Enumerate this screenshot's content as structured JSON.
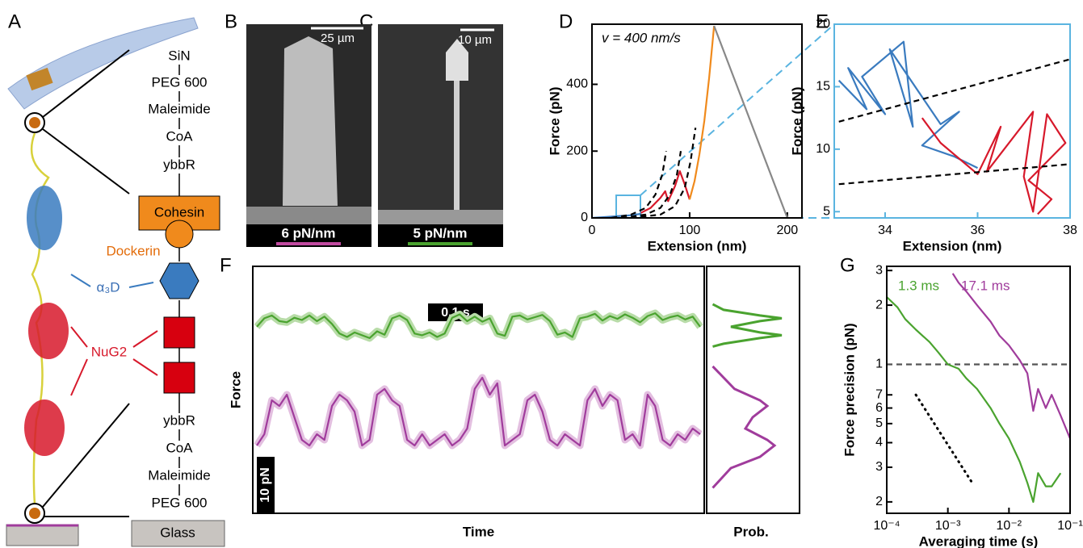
{
  "panel_labels": [
    "A",
    "B",
    "C",
    "D",
    "E",
    "F",
    "G"
  ],
  "diagram": {
    "top_chain": [
      "SiN",
      "PEG 600",
      "Maleimide",
      "CoA",
      "ybbR"
    ],
    "cohesin": "Cohesin",
    "dockerin": "Dockerin",
    "a3d": "α₃D",
    "nug2": "NuG2",
    "bottom_chain": [
      "ybbR",
      "CoA",
      "Maleimide",
      "PEG 600"
    ],
    "glass": "Glass"
  },
  "images": [
    {
      "scale": "25 µm",
      "stiffness": "6 pN/nm",
      "bar_color": "#c04aa0"
    },
    {
      "scale": "10 µm",
      "stiffness": "5 pN/nm",
      "bar_color": "#4aa32f"
    }
  ],
  "chart_data": [
    {
      "type": "line",
      "xlabel": "Extension (nm)",
      "ylabel": "Force (pN)",
      "annotation": "v = 400 nm/s",
      "xlim": [
        0,
        215
      ],
      "ylim": [
        0,
        580
      ],
      "xticks": [
        0,
        100,
        200
      ],
      "yticks": [
        0,
        200,
        400
      ],
      "series": [
        {
          "color": "#3a7bbf",
          "x": [
            0,
            10,
            20,
            30,
            40,
            50
          ],
          "values": [
            0,
            2,
            4,
            6,
            8,
            12
          ]
        },
        {
          "color": "#d7192b",
          "x": [
            50,
            60,
            70,
            75,
            78,
            85,
            90,
            95,
            100
          ],
          "values": [
            15,
            30,
            60,
            80,
            50,
            95,
            140,
            100,
            55
          ]
        },
        {
          "color": "#f08a1c",
          "x": [
            100,
            105,
            110,
            115,
            120,
            125
          ],
          "values": [
            55,
            110,
            190,
            290,
            420,
            575
          ]
        },
        {
          "color": "#888888",
          "x": [
            125,
            200
          ],
          "values": [
            575,
            0
          ]
        },
        {
          "color": "#000000",
          "dashed": true,
          "x": [
            20,
            40,
            55,
            65,
            72,
            76
          ],
          "values": [
            0,
            10,
            30,
            70,
            130,
            200
          ]
        },
        {
          "color": "#000000",
          "dashed": true,
          "x": [
            30,
            55,
            70,
            80,
            87,
            91
          ],
          "values": [
            0,
            10,
            30,
            70,
            130,
            200
          ]
        },
        {
          "color": "#000000",
          "dashed": true,
          "x": [
            40,
            70,
            85,
            95,
            101,
            106
          ],
          "values": [
            0,
            10,
            35,
            90,
            170,
            270
          ]
        }
      ]
    },
    {
      "type": "line",
      "xlabel": "Extension (nm)",
      "ylabel": "Force (pN)",
      "frame_color": "#5ab4e0",
      "xlim": [
        32.9,
        38
      ],
      "ylim": [
        4.5,
        20
      ],
      "xticks": [
        34,
        36,
        38
      ],
      "yticks": [
        5,
        10,
        15,
        20
      ],
      "series": [
        {
          "color": "#3a7bbf",
          "x": [
            33,
            33.6,
            33.2,
            34,
            33.5,
            34.4,
            34.6,
            34.1,
            35.2,
            35.6,
            34.8,
            35.5,
            36
          ],
          "values": [
            15.5,
            13.2,
            16.5,
            12.8,
            15.8,
            18.6,
            11.8,
            18,
            12,
            13,
            10.3,
            9.4,
            8.5
          ]
        },
        {
          "color": "#d7192b",
          "x": [
            34.8,
            35.2,
            36,
            36.5,
            36.2,
            37.2,
            37,
            37.2,
            37.5,
            37.9,
            37.1,
            37.6,
            37.3
          ],
          "values": [
            12.5,
            10.5,
            8,
            11.8,
            8.2,
            13,
            7.8,
            5,
            12.8,
            10.5,
            7.5,
            6,
            4.8
          ]
        },
        {
          "color": "#000000",
          "dashed": true,
          "x": [
            33,
            38
          ],
          "values": [
            12.2,
            17.2
          ]
        },
        {
          "color": "#000000",
          "dashed": true,
          "x": [
            33,
            38
          ],
          "values": [
            7.2,
            8.8
          ]
        }
      ]
    },
    {
      "type": "trace",
      "xlabel": "Time",
      "ylabel": "Force",
      "prob_label": "Prob.",
      "time_bar": "0.1 s",
      "force_bar": "10 pN",
      "ylim": [
        0,
        43.7
      ],
      "series": [
        {
          "color": "#4aa32f",
          "shade_color": "#b8dca8",
          "values": [
            33,
            34.5,
            35,
            34,
            33.8,
            34.6,
            34.2,
            35,
            34,
            34.8,
            33.5,
            31.8,
            31.2,
            32,
            31.5,
            31,
            32.2,
            31.6,
            34.5,
            35,
            34.2,
            31.8,
            31.5,
            32,
            31.2,
            31.8,
            34.6,
            35.2,
            34,
            34.8,
            33.9,
            34.5,
            31.8,
            31.4,
            34.8,
            35,
            34.3,
            34.7,
            35.1,
            34,
            31.6,
            32,
            31.2,
            34.5,
            34.8,
            35.3,
            34.1,
            34.9,
            34.4,
            35.2,
            34.6,
            33.8,
            34.9,
            35.4,
            34.2,
            34.7,
            35,
            34.3,
            34.8,
            33
          ]
        },
        {
          "color": "#a03c9c",
          "shade_color": "#e3bfe0",
          "values": [
            12,
            14,
            20,
            19,
            21,
            17,
            13,
            12,
            14,
            13,
            19,
            21,
            20,
            18,
            12,
            13,
            21,
            22,
            20,
            19,
            13,
            12,
            14,
            12,
            13,
            14,
            12,
            13,
            15,
            22,
            24,
            21,
            23,
            12,
            13,
            14,
            20,
            21,
            18,
            13,
            12,
            14,
            13,
            12,
            20,
            22,
            19,
            21,
            20,
            13,
            14,
            12,
            21,
            19,
            13,
            12,
            14,
            13,
            15,
            14
          ]
        }
      ],
      "distributions": [
        {
          "color": "#4aa32f",
          "force": [
            29.5,
            30,
            31,
            31.5,
            32,
            33,
            34,
            34.5,
            35,
            36,
            37
          ],
          "prob": [
            0.05,
            0.2,
            0.7,
            1,
            0.7,
            0.3,
            0.7,
            1,
            0.7,
            0.2,
            0.05
          ]
        },
        {
          "color": "#a03c9c",
          "force": [
            4.5,
            8,
            10,
            12,
            13,
            15,
            17,
            19,
            20,
            22,
            26
          ],
          "prob": [
            0.05,
            0.3,
            0.7,
            0.9,
            0.8,
            0.5,
            0.6,
            0.8,
            0.7,
            0.35,
            0.05
          ]
        }
      ]
    },
    {
      "type": "line",
      "xlabel": "Averaging time (s)",
      "ylabel": "Force precision (pN)",
      "xlog": true,
      "ylog": true,
      "xlim": [
        0.0001,
        0.1
      ],
      "ylim": [
        0.175,
        3.15
      ],
      "xticks": [
        {
          "value": 0.0001,
          "label": "10⁻⁴"
        },
        {
          "value": 0.001,
          "label": "10⁻³"
        },
        {
          "value": 0.01,
          "label": "10⁻²"
        },
        {
          "value": 0.1,
          "label": "10⁻¹"
        }
      ],
      "yticks": [
        {
          "value": 0.2,
          "label": "2"
        },
        {
          "value": 0.3,
          "label": "3"
        },
        {
          "value": 0.4,
          "label": "4"
        },
        {
          "value": 0.5,
          "label": "5"
        },
        {
          "value": 0.6,
          "label": "6"
        },
        {
          "value": 0.7,
          "label": "7"
        },
        1,
        {
          "value": 2,
          "label": "2"
        },
        {
          "value": 3,
          "label": "3"
        }
      ],
      "annotations": [
        {
          "text": "1.3 ms",
          "color": "#4aa32f"
        },
        {
          "text": "17.1 ms",
          "color": "#a03c9c"
        }
      ],
      "series": [
        {
          "color": "#555555",
          "dashed": true,
          "x": [
            0.0001,
            0.1
          ],
          "values": [
            1,
            1
          ]
        },
        {
          "color": "#000000",
          "dotted": true,
          "x": [
            0.0003,
            0.0025
          ],
          "values": [
            0.7,
            0.25
          ]
        },
        {
          "color": "#4aa32f",
          "x": [
            0.0001,
            0.00015,
            0.0002,
            0.0003,
            0.0005,
            0.0007,
            0.001,
            0.0015,
            0.002,
            0.003,
            0.005,
            0.007,
            0.01,
            0.015,
            0.02,
            0.025,
            0.03,
            0.04,
            0.05,
            0.07
          ],
          "values": [
            2.2,
            1.95,
            1.7,
            1.5,
            1.3,
            1.15,
            1.0,
            0.95,
            0.85,
            0.75,
            0.6,
            0.5,
            0.42,
            0.32,
            0.25,
            0.2,
            0.28,
            0.24,
            0.24,
            0.28
          ]
        },
        {
          "color": "#a03c9c",
          "x": [
            0.0012,
            0.0015,
            0.002,
            0.003,
            0.005,
            0.007,
            0.01,
            0.015,
            0.02,
            0.025,
            0.03,
            0.04,
            0.05,
            0.07,
            0.1
          ],
          "values": [
            2.9,
            2.6,
            2.35,
            2.0,
            1.65,
            1.4,
            1.25,
            1.05,
            0.9,
            0.58,
            0.75,
            0.6,
            0.7,
            0.55,
            0.42
          ]
        }
      ]
    }
  ]
}
